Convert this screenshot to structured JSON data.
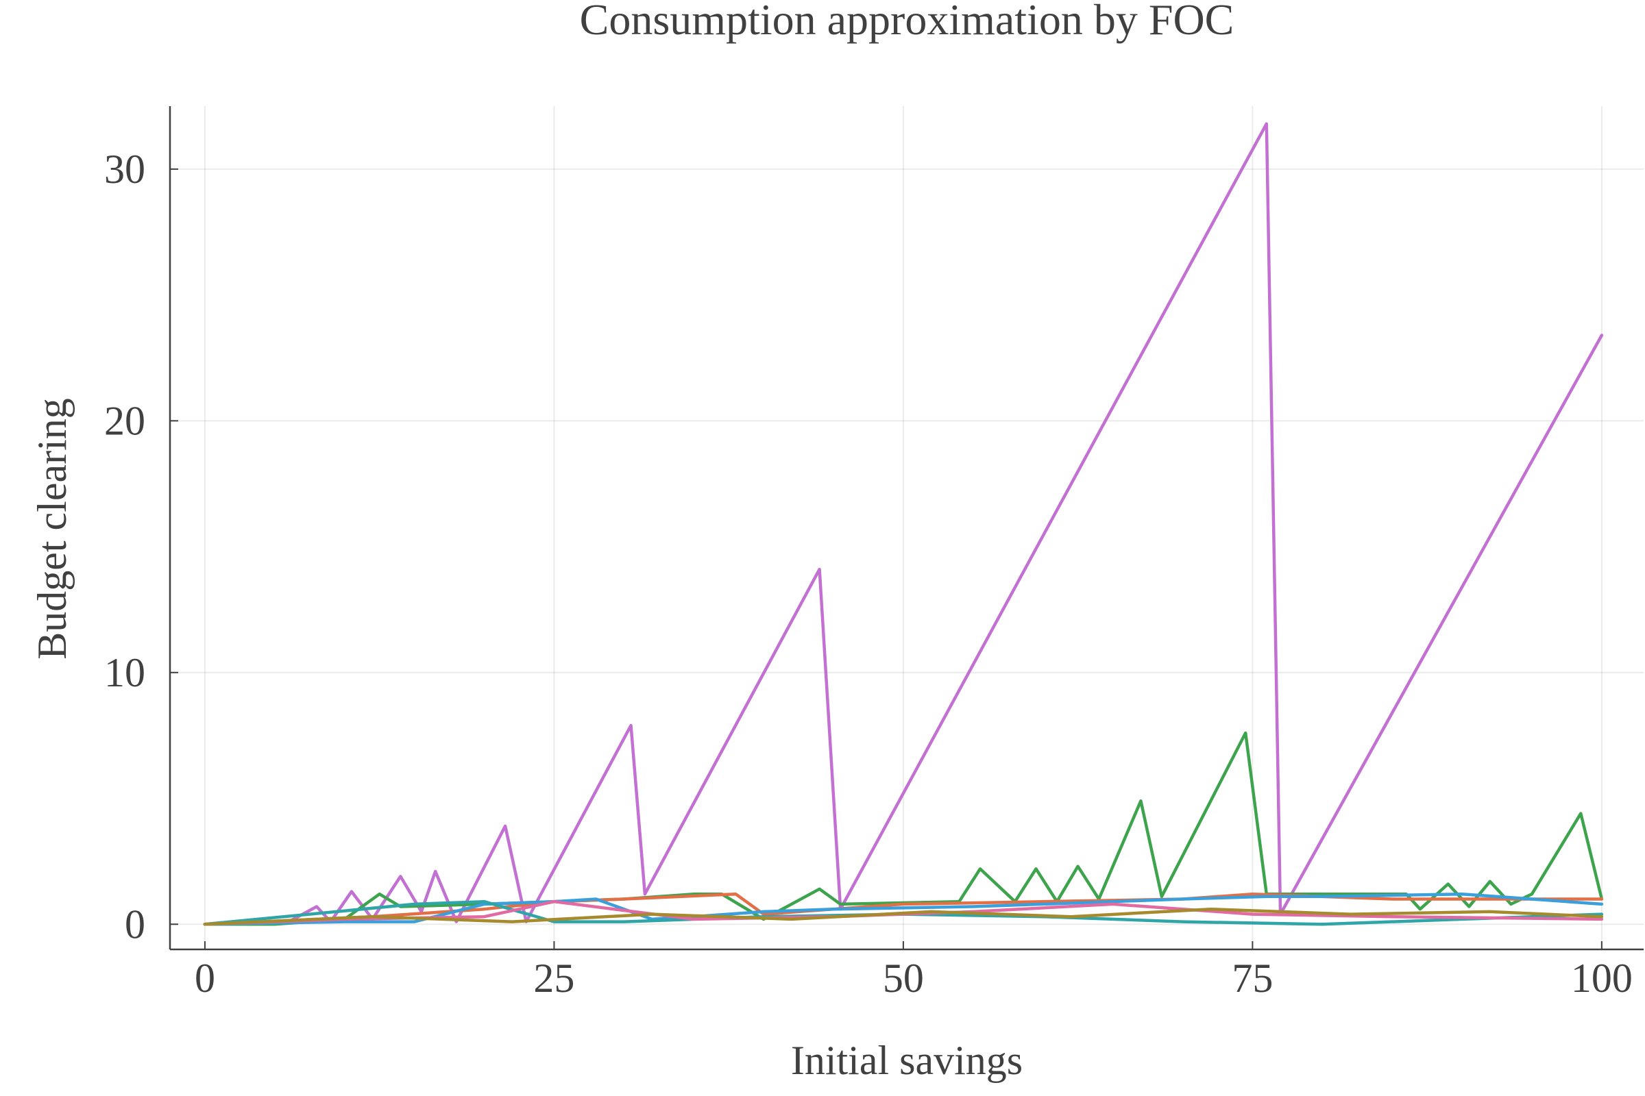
{
  "chart_data": {
    "type": "line",
    "title": "Consumption approximation by FOC",
    "xlabel": "Initial savings",
    "ylabel": "Budget clearing",
    "xlim": [
      -2.5,
      103
    ],
    "ylim": [
      -1,
      32.5
    ],
    "xticks": [
      0,
      25,
      50,
      75,
      100
    ],
    "yticks": [
      0,
      10,
      20,
      30
    ],
    "grid": true,
    "legend": "none",
    "series": [
      {
        "color": "#c271d2",
        "x": [
          0,
          2,
          4,
          6,
          8,
          9,
          10.5,
          12,
          14,
          15.5,
          16.5,
          18,
          21.5,
          23,
          30.5,
          31.5,
          44,
          45.5,
          76,
          77,
          100
        ],
        "y": [
          0,
          0.1,
          0,
          0.1,
          0.7,
          0.1,
          1.3,
          0.2,
          1.9,
          0.5,
          2.1,
          0.1,
          3.9,
          0.1,
          7.9,
          1.2,
          14.1,
          0.6,
          31.8,
          0.4,
          23.4
        ]
      },
      {
        "color": "#3da44d",
        "x": [
          0,
          5,
          10,
          12.5,
          14,
          20,
          30,
          35,
          37,
          40,
          44,
          45.5,
          54,
          55.5,
          58,
          59.5,
          61,
          62.5,
          64,
          67,
          68.5,
          74.5,
          76,
          86,
          87,
          89,
          90.5,
          92,
          93.5,
          95,
          98.5,
          100
        ],
        "y": [
          0,
          0,
          0.2,
          1.2,
          0.7,
          0.8,
          1.0,
          1.2,
          1.2,
          0.2,
          1.4,
          0.8,
          0.9,
          2.2,
          0.9,
          2.2,
          0.9,
          2.3,
          1.0,
          4.9,
          1.1,
          7.6,
          1.2,
          1.2,
          0.6,
          1.6,
          0.7,
          1.7,
          0.8,
          1.2,
          4.4,
          1.0
        ]
      },
      {
        "color": "#e26f46",
        "x": [
          0,
          8,
          12,
          20,
          25,
          30,
          38,
          40,
          50,
          60,
          70,
          75,
          85,
          100
        ],
        "y": [
          0,
          0.2,
          0.3,
          0.6,
          0.9,
          1.0,
          1.2,
          0.4,
          0.8,
          0.9,
          1.0,
          1.2,
          1.0,
          1.0
        ]
      },
      {
        "color": "#3a9fdb",
        "x": [
          0,
          10,
          15,
          20,
          25,
          28,
          32,
          35,
          40,
          45,
          55,
          60,
          70,
          76,
          80,
          90,
          100
        ],
        "y": [
          0,
          0.1,
          0.1,
          0.8,
          0.9,
          1.0,
          0.2,
          0.3,
          0.5,
          0.6,
          0.7,
          0.8,
          1.0,
          1.1,
          1.1,
          1.2,
          0.8
        ]
      },
      {
        "color": "#2fa5a8",
        "x": [
          0,
          15,
          20,
          25,
          30,
          40,
          50,
          60,
          70,
          80,
          90,
          100
        ],
        "y": [
          0,
          0.8,
          0.9,
          0.1,
          0.1,
          0.3,
          0.4,
          0.3,
          0.1,
          0.0,
          0.2,
          0.4
        ]
      },
      {
        "color": "#e16aa3",
        "x": [
          0,
          10,
          20,
          25,
          35,
          45,
          55,
          65,
          75,
          85,
          100
        ],
        "y": [
          0,
          0.2,
          0.3,
          0.9,
          0.2,
          0.3,
          0.5,
          0.8,
          0.4,
          0.3,
          0.2
        ]
      },
      {
        "color": "#a68a2e",
        "x": [
          0,
          12,
          22,
          32,
          42,
          52,
          62,
          72,
          82,
          92,
          100
        ],
        "y": [
          0,
          0.3,
          0.1,
          0.4,
          0.2,
          0.5,
          0.3,
          0.6,
          0.4,
          0.5,
          0.3
        ]
      }
    ]
  }
}
